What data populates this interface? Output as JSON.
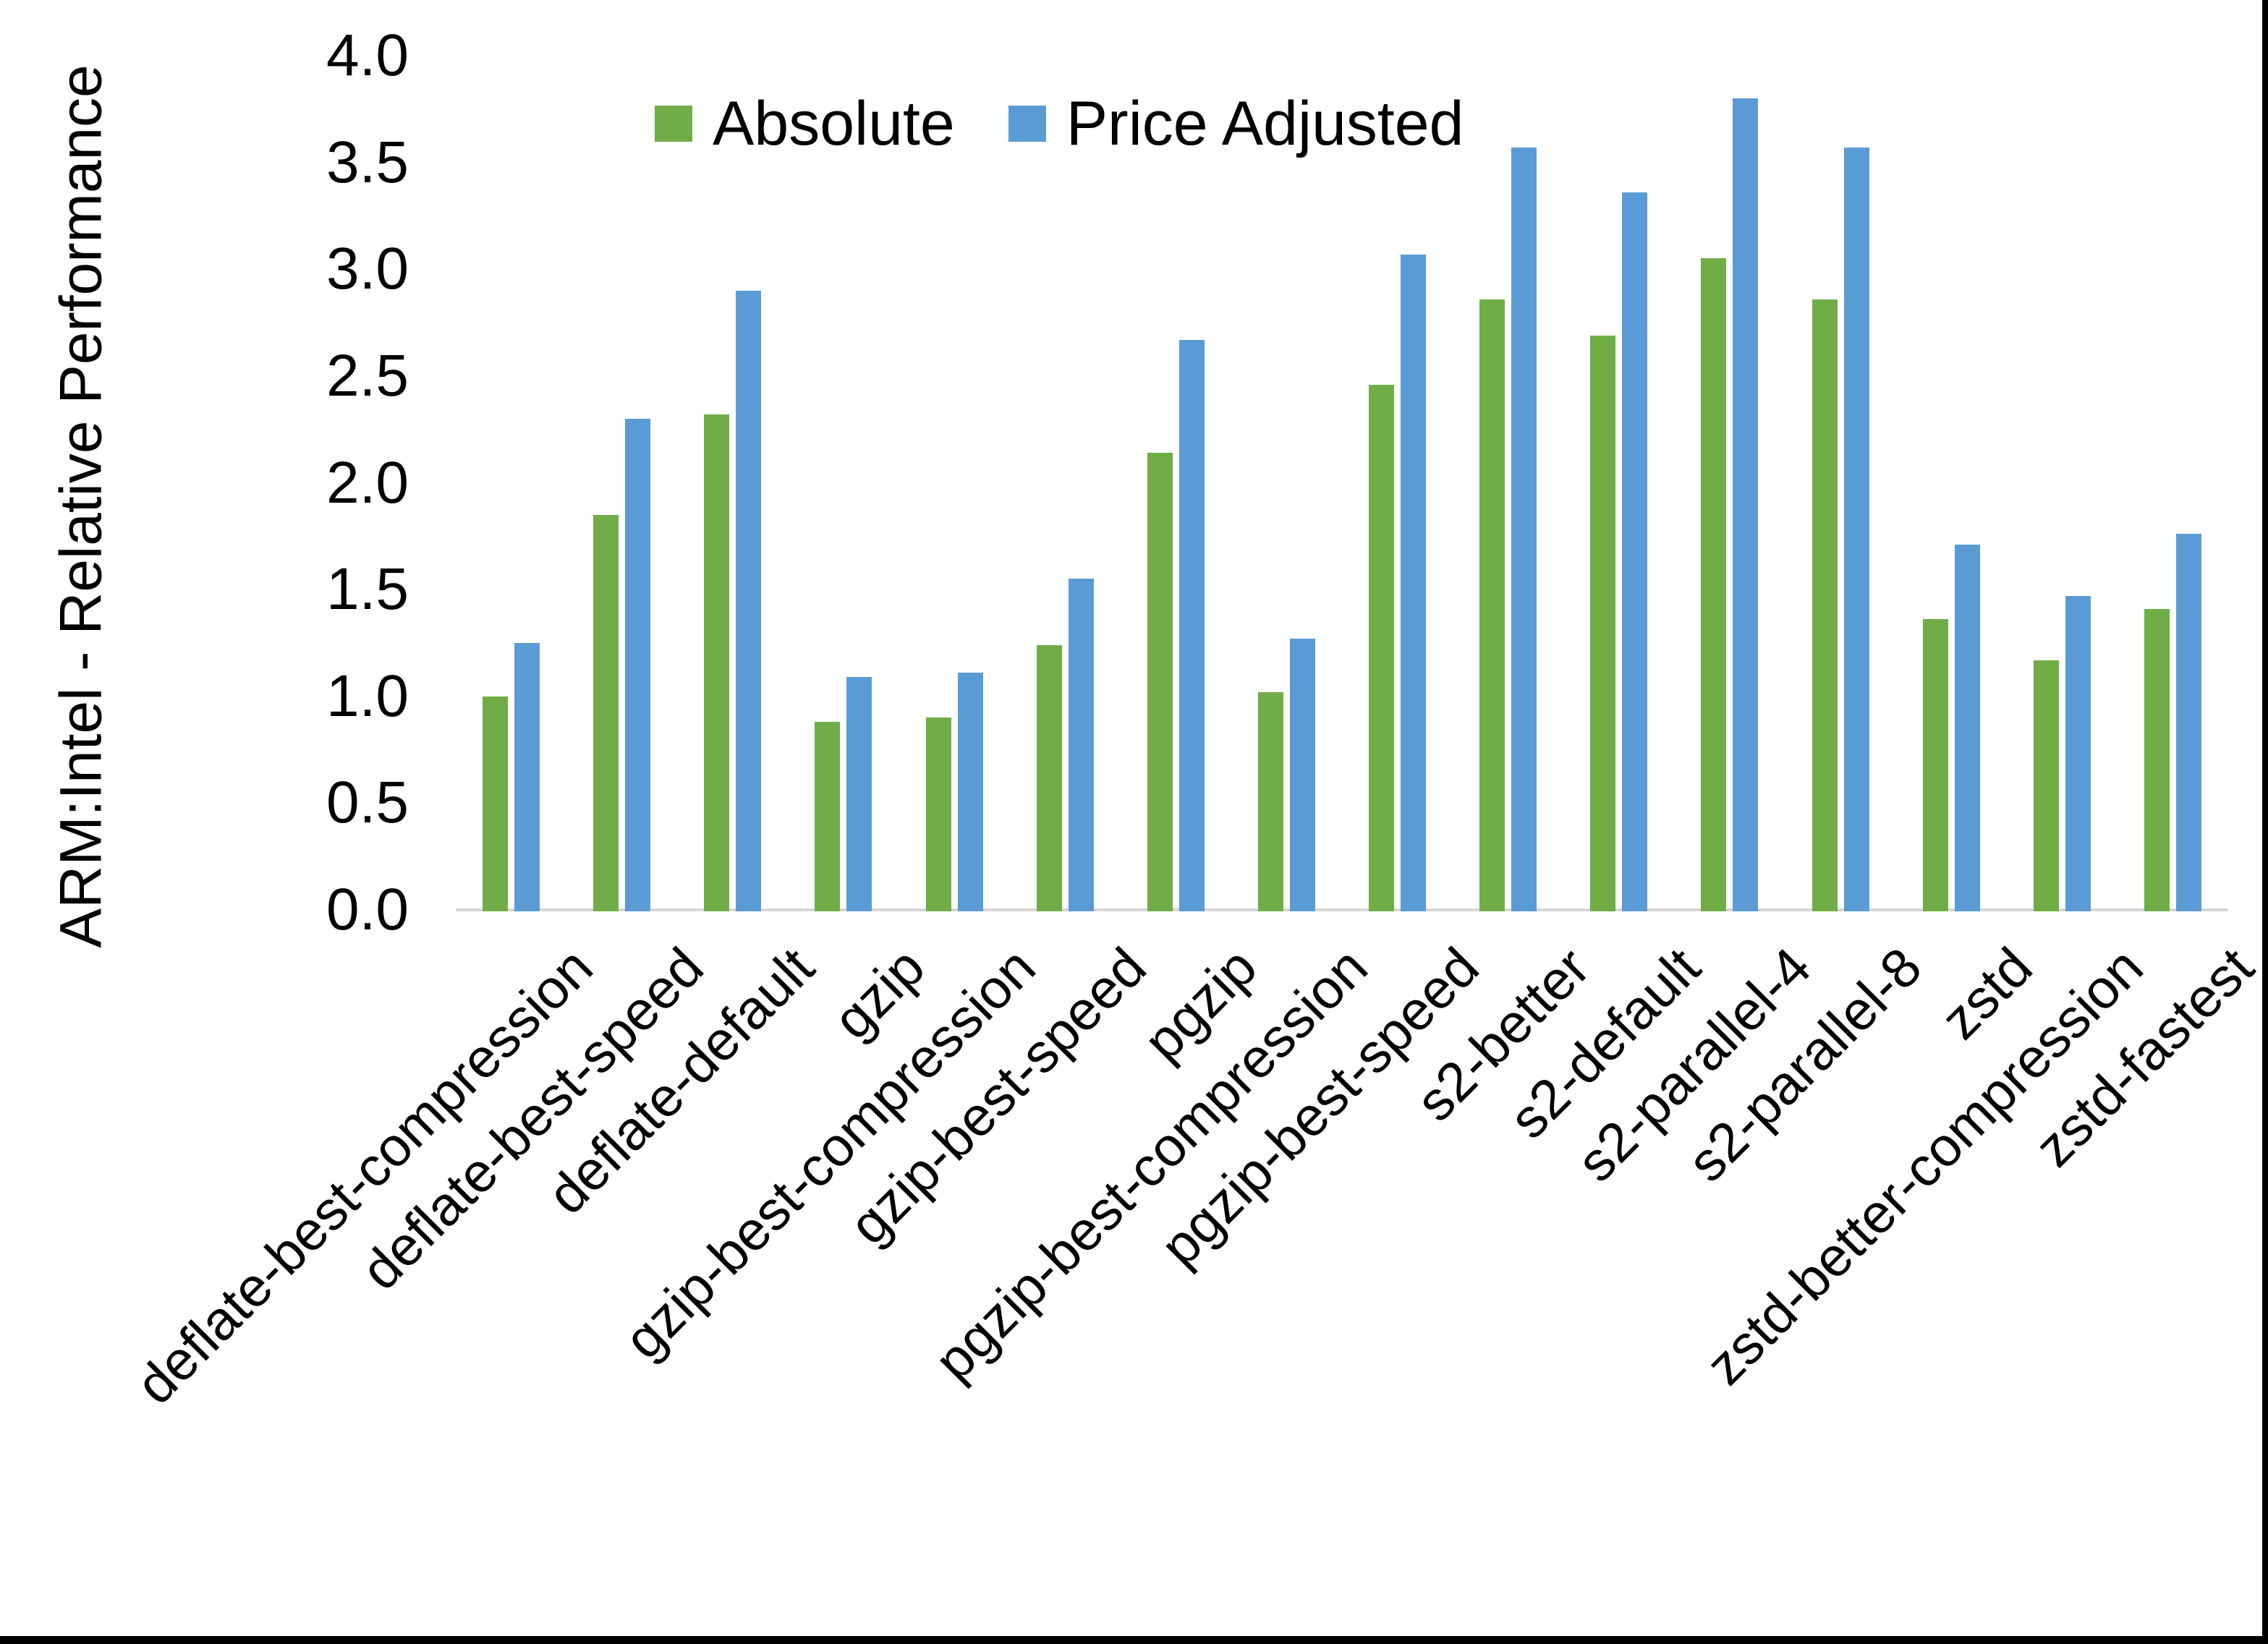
{
  "figure": {
    "background": "#ffffff",
    "frame_border_color": "#000000",
    "axis_line_color": "#d6d6d6",
    "text_color": "#000000"
  },
  "chart_data": {
    "type": "bar",
    "title": "",
    "xlabel": "",
    "ylabel": "ARM:Intel - Relative Performance",
    "ylim": [
      0,
      4
    ],
    "ytick_step": 0.5,
    "ytick_labels": [
      "0.0",
      "0.5",
      "1.0",
      "1.5",
      "2.0",
      "2.5",
      "3.0",
      "3.5",
      "4.0"
    ],
    "grid": false,
    "legend_position": "top-center",
    "categories": [
      "deflate-best-compression",
      "deflate-best-speed",
      "deflate-default",
      "gzip",
      "gzip-best-compression",
      "gzip-best-speed",
      "pgzip",
      "pgzip-best-compression",
      "pgzip-best-speed",
      "s2-better",
      "s2-default",
      "s2-parallel-4",
      "s2-parallel-8",
      "zstd",
      "zstd-better-compression",
      "zstd-fastest"
    ],
    "series": [
      {
        "name": "Absolute",
        "color": "#70AD47",
        "values": [
          1.0,
          1.85,
          2.32,
          0.88,
          0.9,
          1.24,
          2.14,
          1.02,
          2.46,
          2.86,
          2.69,
          3.05,
          2.86,
          1.36,
          1.17,
          1.41
        ]
      },
      {
        "name": "Price Adjusted",
        "color": "#5B9BD5",
        "values": [
          1.25,
          2.3,
          2.9,
          1.09,
          1.11,
          1.55,
          2.67,
          1.27,
          3.07,
          3.57,
          3.36,
          3.8,
          3.57,
          1.71,
          1.47,
          1.76
        ]
      }
    ]
  }
}
